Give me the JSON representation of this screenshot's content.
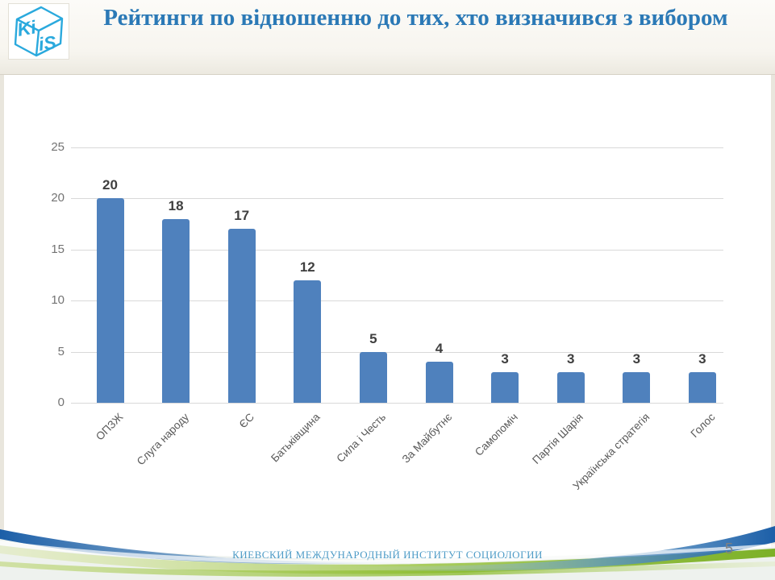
{
  "header": {
    "title": "Рейтинги по відношенню до тих, хто визначився з вибором"
  },
  "logo": {
    "text_top": "Ki",
    "text_bottom": "iS",
    "color": "#2aa9dd"
  },
  "chart_data": {
    "type": "bar",
    "title": "",
    "xlabel": "",
    "ylabel": "",
    "categories": [
      "ОПЗЖ",
      "Слуга народу",
      "ЄС",
      "Батьківщина",
      "Сила і Честь",
      "За Майбутнє",
      "Самопоміч",
      "Партія Шарія",
      "Українська стратегія",
      "Голос"
    ],
    "values": [
      20,
      18,
      17,
      12,
      5,
      4,
      3,
      3,
      3,
      3
    ],
    "ylim": [
      0,
      25
    ],
    "yticks": [
      0,
      5,
      10,
      15,
      20,
      25
    ],
    "grid": true,
    "legend": "none",
    "bar_color": "#4f81bd",
    "value_label_color": "#3f3f3f",
    "tick_label_color": "#737373"
  },
  "footer": {
    "org_name": "КИЕВСКИЙ МЕЖДУНАРОДНЫЙ ИНСТИТУТ СОЦИОЛОГИИ",
    "page_number": "5"
  }
}
